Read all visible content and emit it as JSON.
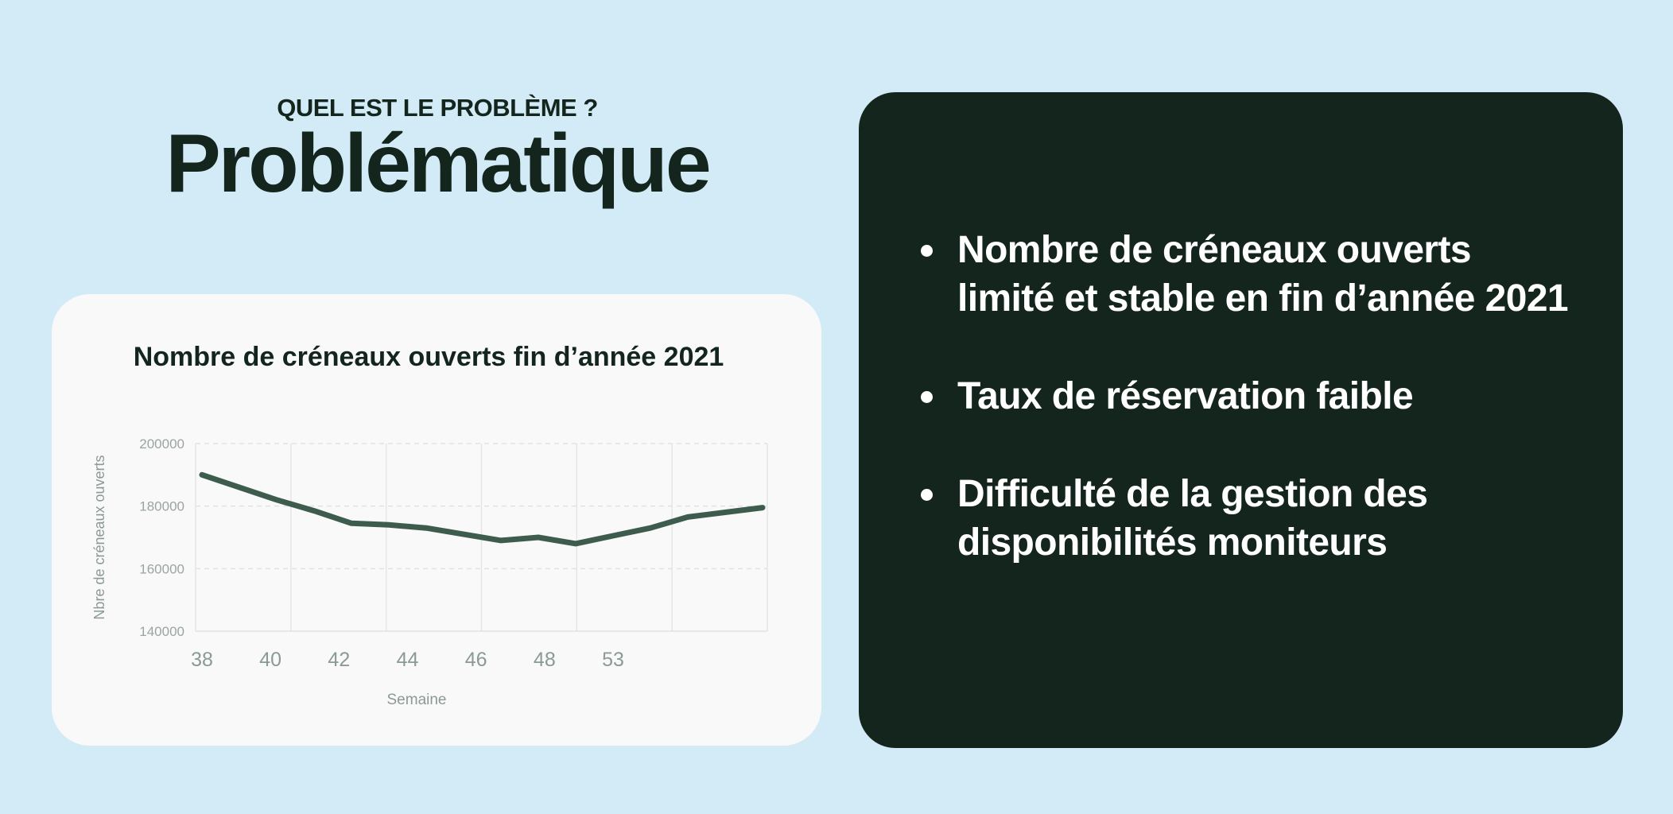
{
  "header": {
    "kicker": "QUEL EST LE PROBLÈME ?",
    "title": "Problématique"
  },
  "bullets": [
    "Nombre de créneaux ouverts limité et stable en fin d’année 2021",
    "Taux de réservation faible",
    "Difficulté  de la gestion des disponibilités moniteurs"
  ],
  "colors": {
    "background": "#d3ebf6",
    "dark_card": "#13251d",
    "line": "#3d5c4e"
  },
  "chart_data": {
    "type": "line",
    "title": "Nombre de créneaux ouverts fin d’année 2021",
    "xlabel": "Semaine",
    "ylabel": "Nbre de créneaux ouverts",
    "x_ticks": [
      "38",
      "40",
      "42",
      "44",
      "46",
      "48",
      "53"
    ],
    "y_ticks": [
      200000,
      180000,
      160000,
      140000
    ],
    "ylim": [
      140000,
      200000
    ],
    "xlim": [
      38,
      53
    ],
    "grid": true,
    "legend": "none",
    "series": [
      {
        "points": [
          {
            "x": 38,
            "y": 190000
          },
          {
            "x": 40,
            "y": 182000
          },
          {
            "x": 41,
            "y": 178500
          },
          {
            "x": 42,
            "y": 174500
          },
          {
            "x": 43,
            "y": 174000
          },
          {
            "x": 44,
            "y": 173000
          },
          {
            "x": 45,
            "y": 171000
          },
          {
            "x": 46,
            "y": 169000
          },
          {
            "x": 47,
            "y": 170000
          },
          {
            "x": 48,
            "y": 168000
          },
          {
            "x": 49,
            "y": 170500
          },
          {
            "x": 50,
            "y": 173000
          },
          {
            "x": 51,
            "y": 176500
          },
          {
            "x": 53,
            "y": 179500
          }
        ]
      }
    ]
  }
}
